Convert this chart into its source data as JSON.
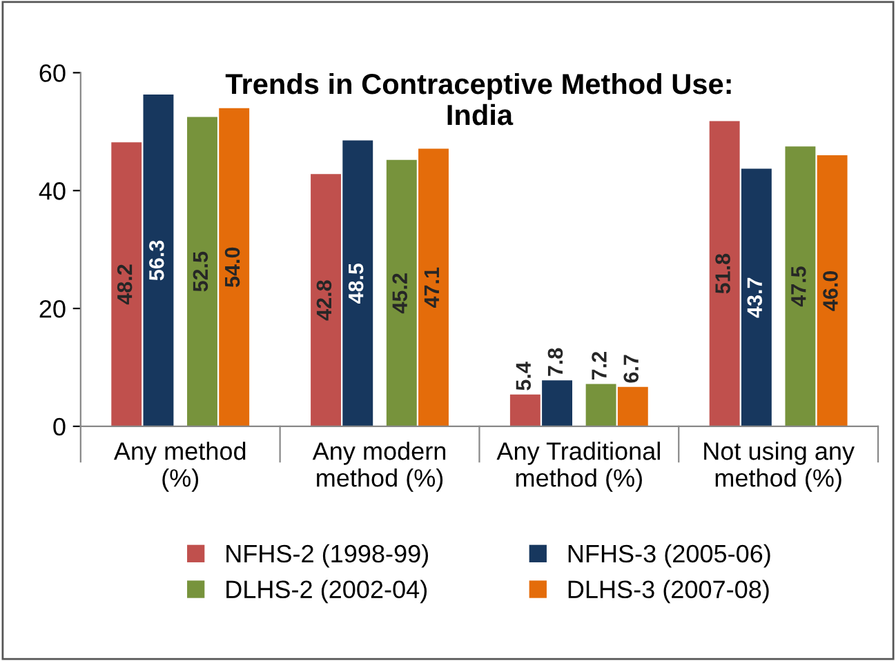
{
  "chart_data": {
    "type": "bar",
    "title": "Trends in Contraceptive Method Use:\nIndia",
    "categories": [
      "Any method\n(%)",
      "Any modern\nmethod (%)",
      "Any Traditional\nmethod (%)",
      "Not using any\nmethod (%)"
    ],
    "series": [
      {
        "name": "NFHS-2 (1998-99)",
        "color": "#c0504d",
        "values": [
          48.2,
          42.8,
          5.4,
          51.8
        ]
      },
      {
        "name": "NFHS-3 (2005-06)",
        "color": "#17375e",
        "values": [
          56.3,
          48.5,
          7.8,
          43.7
        ]
      },
      {
        "name": "DLHS-2 (2002-04)",
        "color": "#77933c",
        "values": [
          52.5,
          45.2,
          7.2,
          47.5
        ]
      },
      {
        "name": "DLHS-3 (2007-08)",
        "color": "#e46c0a",
        "values": [
          54.0,
          47.1,
          6.7,
          46.0
        ],
        "value_labels": [
          "54.0",
          "47.1",
          "6.7",
          "46.0"
        ]
      }
    ],
    "ylim": [
      0,
      60
    ],
    "yticks": [
      0,
      20,
      40,
      60
    ],
    "grid": false,
    "legend": "bottom",
    "data_labels": true
  }
}
